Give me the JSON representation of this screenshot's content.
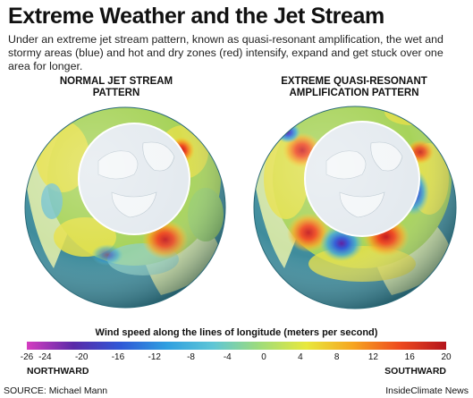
{
  "title": "Extreme Weather and the Jet Stream",
  "intro": "Under an extreme jet stream pattern, known as quasi-resonant amplification, the wet and stormy areas (blue) and hot and dry zones (red) intensify, expand and get stuck over one area for longer.",
  "globes": [
    {
      "title_lines": [
        "NORMAL JET STREAM",
        "PATTERN"
      ],
      "pattern": "normal",
      "anomalies": [
        {
          "kind": "hot",
          "strength": "moderate"
        },
        {
          "kind": "hot",
          "strength": "moderate"
        },
        {
          "kind": "wet",
          "strength": "weak"
        }
      ]
    },
    {
      "title_lines": [
        "EXTREME QUASI-RESONANT",
        "AMPLIFICATION PATTERN"
      ],
      "pattern": "quasi-resonant",
      "anomalies": [
        {
          "kind": "hot",
          "strength": "strong"
        },
        {
          "kind": "wet",
          "strength": "strong"
        },
        {
          "kind": "hot",
          "strength": "strong"
        },
        {
          "kind": "wet",
          "strength": "strong"
        }
      ]
    }
  ],
  "legend": {
    "title": "Wind speed along the lines of longitude (meters per second)",
    "ticks": [
      "-26",
      "-24",
      "-20",
      "-16",
      "-12",
      "-8",
      "-4",
      "0",
      "4",
      "8",
      "12",
      "16",
      "20"
    ],
    "min": -26,
    "max": 20,
    "left_label": "NORTHWARD",
    "right_label": "SOUTHWARD",
    "colors": [
      "#d53dc0",
      "#5a2aa8",
      "#2f57d6",
      "#2f9fe0",
      "#5fc6d6",
      "#9fdc7a",
      "#e8e83c",
      "#f6a521",
      "#ee4a1f",
      "#b4141c"
    ]
  },
  "source": "SOURCE: Michael Mann",
  "brand": "InsideClimate News",
  "colors": {
    "ocean": "#3f8c9c",
    "land": "#cfe3a6",
    "arctic": "#e4eaef",
    "belt_base": "#a7d35a"
  }
}
